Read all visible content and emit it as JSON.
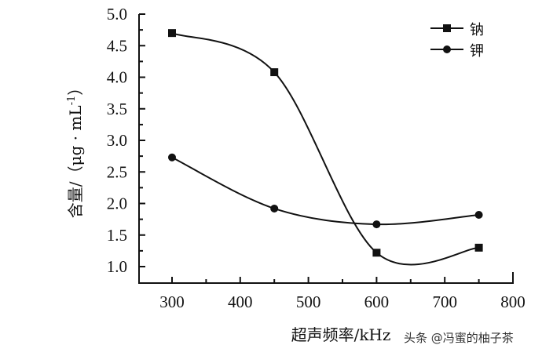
{
  "chart_data": {
    "type": "line",
    "title": "",
    "xlabel": "超声频率/kHz",
    "ylabel": "含量/（μg·mL⁻¹）",
    "x": [
      300,
      450,
      600,
      750
    ],
    "series": [
      {
        "name": "钠",
        "marker": "square",
        "values": [
          4.7,
          4.08,
          1.22,
          1.3
        ]
      },
      {
        "name": "钾",
        "marker": "circle",
        "values": [
          2.73,
          1.92,
          1.67,
          1.82
        ]
      }
    ],
    "xlim": [
      250,
      800
    ],
    "ylim": [
      0.75,
      5.0
    ],
    "xticks": [
      300,
      400,
      500,
      600,
      700,
      800
    ],
    "yticks": [
      1.0,
      1.5,
      2.0,
      2.5,
      3.0,
      3.5,
      4.0,
      4.5,
      5.0
    ],
    "grid": false,
    "legend_position": "upper right",
    "smooth": true
  },
  "labels": {
    "xticks": [
      "300",
      "400",
      "500",
      "600",
      "700",
      "800"
    ],
    "yticks": [
      "1.0",
      "1.5",
      "2.0",
      "2.5",
      "3.0",
      "3.5",
      "4.0",
      "4.5",
      "5.0"
    ],
    "xlabel": "超声频率/kHz",
    "ylabel_cn": "含量/（",
    "ylabel_unit": "μg · mL",
    "ylabel_sup": "-1",
    "ylabel_close": "）",
    "legend_na": "钠",
    "legend_k": "钾",
    "watermark": "头条 @冯蜜的柚子茶"
  }
}
